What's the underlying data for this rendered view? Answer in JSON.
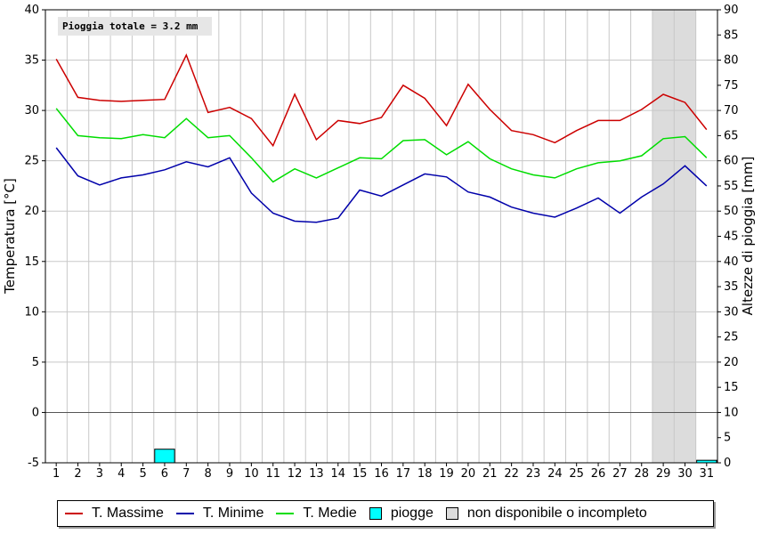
{
  "chart_data": {
    "type": "line",
    "x": [
      1,
      2,
      3,
      4,
      5,
      6,
      7,
      8,
      9,
      10,
      11,
      12,
      13,
      14,
      15,
      16,
      17,
      18,
      19,
      20,
      21,
      22,
      23,
      24,
      25,
      26,
      27,
      28,
      29,
      30,
      31
    ],
    "x_ticks": [
      "1",
      "2",
      "3",
      "4",
      "5",
      "6",
      "7",
      "8",
      "9",
      "10",
      "11",
      "12",
      "13",
      "14",
      "15",
      "16",
      "17",
      "18",
      "19",
      "20",
      "21",
      "22",
      "23",
      "24",
      "25",
      "26",
      "27",
      "28",
      "29",
      "30",
      "31"
    ],
    "ylabel": "Temperatura [°C]",
    "ylim": [
      -5,
      40
    ],
    "y_ticks": [
      "-5",
      "0",
      "5",
      "10",
      "15",
      "20",
      "25",
      "30",
      "35",
      "40"
    ],
    "y2label": "Altezze di pioggia [mm]",
    "y2lim": [
      0,
      90
    ],
    "y2_ticks": [
      "0",
      "5",
      "10",
      "15",
      "20",
      "25",
      "30",
      "35",
      "40",
      "45",
      "50",
      "55",
      "60",
      "65",
      "70",
      "75",
      "80",
      "85",
      "90"
    ],
    "annotation": "Pioggia totale = 3.2 mm",
    "grid": true,
    "legend_position": "bottom",
    "series": [
      {
        "name": "T. Massime",
        "color": "#cc0000",
        "values": [
          35.1,
          31.3,
          31.0,
          30.9,
          31.0,
          31.1,
          35.5,
          29.8,
          30.3,
          29.2,
          26.5,
          31.6,
          27.1,
          29.0,
          28.7,
          29.3,
          32.5,
          31.2,
          28.5,
          32.6,
          30.1,
          28.0,
          27.6,
          26.8,
          28.0,
          29.0,
          29.0,
          30.1,
          31.6,
          30.8,
          28.1
        ]
      },
      {
        "name": "T. Minime",
        "color": "#0000aa",
        "values": [
          26.3,
          23.5,
          22.6,
          23.3,
          23.6,
          24.1,
          24.9,
          24.4,
          25.3,
          21.8,
          19.8,
          19.0,
          18.9,
          19.3,
          22.1,
          21.5,
          22.6,
          23.7,
          23.4,
          21.9,
          21.4,
          20.4,
          19.8,
          19.4,
          20.3,
          21.3,
          19.8,
          21.4,
          22.7,
          24.5,
          22.5
        ]
      },
      {
        "name": "T. Medie",
        "color": "#00dd00",
        "values": [
          30.2,
          27.5,
          27.3,
          27.2,
          27.6,
          27.3,
          29.2,
          27.3,
          27.5,
          25.3,
          22.9,
          24.2,
          23.3,
          24.3,
          25.3,
          25.2,
          27.0,
          27.1,
          25.6,
          26.9,
          25.2,
          24.2,
          23.6,
          23.3,
          24.2,
          24.8,
          25.0,
          25.5,
          27.2,
          27.4,
          25.3
        ]
      }
    ],
    "rain": {
      "name": "piogge",
      "color": "#00ffff",
      "values": [
        0,
        0,
        0,
        0,
        0,
        2.7,
        0,
        0,
        0,
        0,
        0,
        0,
        0,
        0,
        0,
        0,
        0,
        0,
        0,
        0,
        0,
        0,
        0,
        0,
        0,
        0,
        0,
        0,
        0,
        0,
        0.5
      ]
    },
    "unavailable": {
      "name": "non disponibile o incompleto",
      "color": "#dcdcdc",
      "days": [
        29,
        30
      ]
    }
  },
  "legend": {
    "items": [
      {
        "label": "T. Massime",
        "color": "#cc0000",
        "kind": "line"
      },
      {
        "label": "T. Minime",
        "color": "#0000aa",
        "kind": "line"
      },
      {
        "label": "T. Medie",
        "color": "#00dd00",
        "kind": "line"
      },
      {
        "label": "piogge",
        "color": "#00ffff",
        "kind": "box"
      },
      {
        "label": "non disponibile o incompleto",
        "color": "#dcdcdc",
        "kind": "box"
      }
    ]
  }
}
